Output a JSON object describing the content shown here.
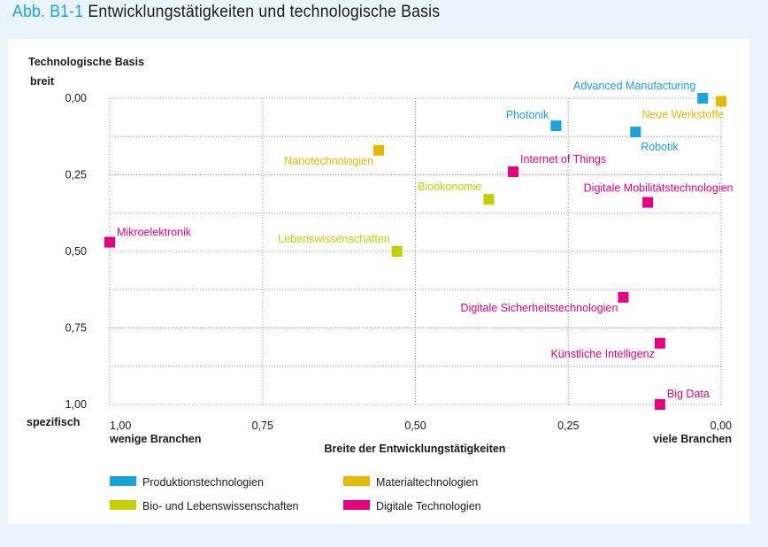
{
  "figure": {
    "label": "Abb. B1-1",
    "title": "Entwicklungstätigkeiten und technologische Basis"
  },
  "colors": {
    "Produktionstechnologien": "#1aa2db",
    "Materialtechnologien": "#e6b800",
    "Bio- und Lebenswissenschaften": "#c3cf00",
    "Digitale Technologien": "#e4007f",
    "background": "#e9f4fb",
    "title_accent": "#1aa2db"
  },
  "chart_data": {
    "type": "scatter",
    "title": "Entwicklungstätigkeiten und technologische Basis",
    "xlabel": "Breite der Entwicklungstätigkeiten",
    "ylabel": "Technologische Basis",
    "x_low_label": "wenige Branchen",
    "x_high_label": "viele Branchen",
    "y_top_label": "breit",
    "y_bottom_label": "spezifisch",
    "xlim": [
      1.0,
      0.0
    ],
    "ylim": [
      0.0,
      1.0
    ],
    "x_reversed": true,
    "y_reversed": true,
    "xticks": [
      "1,00",
      "0,75",
      "0,50",
      "0,25",
      "0,00"
    ],
    "xtick_values": [
      1.0,
      0.75,
      0.5,
      0.25,
      0.0
    ],
    "yticks": [
      "0,00",
      "0,25",
      "0,50",
      "0,75",
      "1,00"
    ],
    "ytick_values": [
      0.0,
      0.25,
      0.5,
      0.75,
      1.0
    ],
    "grid": true,
    "legend_position": "bottom-left",
    "legend": [
      "Produktionstechnologien",
      "Materialtechnologien",
      "Bio- und Lebenswissenschaften",
      "Digitale Technologien"
    ],
    "points": [
      {
        "label": "Advanced Manufacturing",
        "category": "Produktionstechnologien",
        "x": 0.03,
        "y": 0.0,
        "label_pos": "above-left"
      },
      {
        "label": "Neue Werkstoffe",
        "category": "Materialtechnologien",
        "x": 0.0,
        "y": 0.01,
        "label_pos": "below-left"
      },
      {
        "label": "Photonik",
        "category": "Produktionstechnologien",
        "x": 0.27,
        "y": 0.09,
        "label_pos": "left-above"
      },
      {
        "label": "Robotik",
        "category": "Produktionstechnologien",
        "x": 0.14,
        "y": 0.11,
        "label_pos": "below-right"
      },
      {
        "label": "Nanotechnologien",
        "category": "Materialtechnologien",
        "x": 0.56,
        "y": 0.17,
        "label_pos": "below-left"
      },
      {
        "label": "Internet of Things",
        "category": "Digitale Technologien",
        "x": 0.34,
        "y": 0.24,
        "label_pos": "above-right"
      },
      {
        "label": "Bioökonomie",
        "category": "Bio- und Lebenswissenschaften",
        "x": 0.38,
        "y": 0.33,
        "label_pos": "above-left"
      },
      {
        "label": "Digitale Mobilitätstechnologien",
        "category": "Digitale Technologien",
        "x": 0.12,
        "y": 0.34,
        "label_pos": "above-center"
      },
      {
        "label": "Mikroelektronik",
        "category": "Digitale Technologien",
        "x": 1.0,
        "y": 0.47,
        "label_pos": "above-right"
      },
      {
        "label": "Lebenswissenschaften",
        "category": "Bio- und Lebenswissenschaften",
        "x": 0.53,
        "y": 0.5,
        "label_pos": "above-left"
      },
      {
        "label": "Digitale Sicherheitstechnologien",
        "category": "Digitale Technologien",
        "x": 0.16,
        "y": 0.65,
        "label_pos": "below-left"
      },
      {
        "label": "Künstliche Intelligenz",
        "category": "Digitale Technologien",
        "x": 0.1,
        "y": 0.8,
        "label_pos": "below-left"
      },
      {
        "label": "Big Data",
        "category": "Digitale Technologien",
        "x": 0.1,
        "y": 1.0,
        "label_pos": "above-right"
      }
    ]
  }
}
